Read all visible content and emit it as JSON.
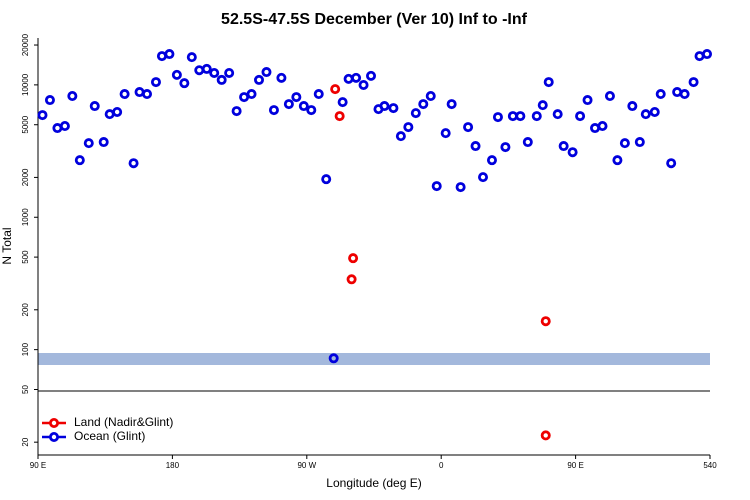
{
  "chart_data": {
    "type": "scatter",
    "title": "52.5S-47.5S December (Ver 10)   Inf to -Inf",
    "xlabel": "Longitude (deg E)",
    "ylabel": "N Total",
    "xlim": [
      90,
      540
    ],
    "ylim": [
      16,
      22600
    ],
    "ylog": true,
    "xticks": [
      {
        "value": 90,
        "label": "90 E"
      },
      180,
      {
        "value": 270,
        "label": "90 W"
      },
      {
        "value": 360,
        "label": "0"
      },
      {
        "value": 450,
        "label": "90 E"
      },
      540
    ],
    "yticks": [
      20,
      50,
      100,
      200,
      500,
      1000,
      2000,
      5000,
      10000,
      20000
    ],
    "legend": "bottom-left",
    "series": [
      {
        "name": "Land (Nadir&Glint)",
        "color": "#ee0000",
        "x": [
          289,
          292,
          301,
          300,
          430,
          430
        ],
        "values": [
          9290,
          5810,
          491,
          340,
          164,
          22.5
        ]
      },
      {
        "name": "Ocean (Glint)",
        "color": "#0000dd",
        "x": [
          93,
          98,
          103,
          108,
          113,
          118,
          124,
          128,
          134,
          138,
          143,
          148,
          154,
          158,
          163,
          169,
          173,
          178,
          183,
          188,
          193,
          198,
          203,
          208,
          213,
          218,
          223,
          228,
          233,
          238,
          243,
          248,
          253,
          258,
          263,
          268,
          273,
          278,
          283,
          288,
          294,
          298,
          303,
          308,
          313,
          318,
          322,
          328,
          333,
          338,
          343,
          348,
          353,
          357,
          363,
          367,
          373,
          378,
          383,
          388,
          394,
          398,
          403,
          408,
          413,
          418,
          424,
          428,
          432,
          438,
          442,
          448,
          453,
          458,
          463,
          468,
          473,
          478,
          483,
          488,
          493,
          497,
          503,
          507,
          514,
          518,
          523,
          529,
          533,
          538
        ],
        "values": [
          5915,
          7680,
          4720,
          4890,
          8240,
          2700,
          3630,
          6920,
          3700,
          6010,
          6240,
          8530,
          2560,
          8830,
          8530,
          10500,
          16500,
          17100,
          11900,
          10300,
          16200,
          12900,
          13200,
          12300,
          10900,
          12300,
          6340,
          8090,
          8530,
          10900,
          12500,
          6450,
          11300,
          7160,
          8090,
          6920,
          6450,
          8530,
          1940,
          86,
          7410,
          11100,
          11300,
          9980,
          11700,
          6560,
          6920,
          6680,
          4100,
          4800,
          6120,
          7160,
          8240,
          1720,
          4320,
          7160,
          1690,
          4800,
          3450,
          2010,
          2700,
          5710,
          3390,
          5810,
          5810,
          3700,
          5810,
          7030,
          10500,
          6010,
          3450,
          3100,
          5810,
          7680,
          4720,
          4890,
          8240,
          2700,
          3630,
          6920,
          3700,
          6010,
          6240,
          8530,
          2560,
          8830,
          8530,
          10500,
          16500,
          17100
        ]
      }
    ]
  }
}
